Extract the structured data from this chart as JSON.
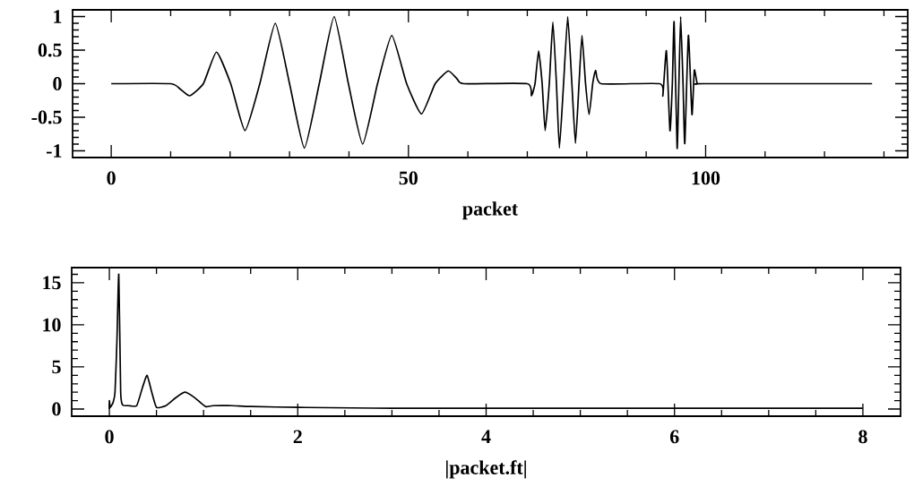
{
  "chart_data": [
    {
      "type": "line",
      "xlabel": "packet",
      "color": "#000000",
      "x": [
        0,
        10.0,
        11.6,
        13.2,
        15.5,
        17.7,
        20.1,
        22.5,
        25.0,
        27.6,
        30.0,
        32.5,
        35.0,
        37.5,
        39.9,
        42.3,
        44.8,
        47.2,
        49.7,
        52.2,
        54.5,
        56.7,
        58.2,
        59.3,
        70.0,
        70.7,
        71.3,
        71.9,
        72.5,
        73.0,
        73.7,
        74.3,
        74.9,
        75.4,
        76.1,
        76.8,
        77.5,
        78.1,
        78.7,
        79.2,
        79.8,
        80.4,
        81.0,
        81.5,
        82.4,
        92.3,
        92.8,
        93.4,
        94.0,
        94.4,
        94.7,
        95.2,
        95.5,
        95.8,
        96.2,
        96.5,
        97.1,
        97.7,
        98.1,
        98.6,
        99.6,
        128
      ],
      "values": [
        0,
        0,
        -0.08,
        -0.18,
        0,
        0.47,
        0,
        -0.7,
        0,
        0.9,
        0,
        -0.96,
        0,
        1.0,
        0,
        -0.9,
        0,
        0.72,
        0,
        -0.45,
        0,
        0.19,
        0.07,
        0,
        0,
        -0.18,
        0,
        0.49,
        0,
        -0.7,
        0,
        0.92,
        0,
        -0.96,
        0,
        1.0,
        0,
        -0.89,
        0,
        0.72,
        0,
        -0.46,
        0,
        0.2,
        0,
        0,
        -0.18,
        0.49,
        -0.7,
        0,
        0.92,
        -0.96,
        0,
        1.0,
        0,
        -0.89,
        0.72,
        -0.46,
        0.2,
        0,
        0,
        0
      ],
      "xlim": [
        -6.5,
        134
      ],
      "ylim": [
        -1.1,
        1.1
      ],
      "xticks": [
        0,
        {
          "value": 10,
          "label": null
        },
        {
          "value": 20,
          "label": null
        },
        {
          "value": 30,
          "label": null
        },
        {
          "value": 40,
          "label": null
        },
        50,
        {
          "value": 60,
          "label": null
        },
        {
          "value": 70,
          "label": null
        },
        {
          "value": 80,
          "label": null
        },
        {
          "value": 90,
          "label": null
        },
        100,
        {
          "value": 110,
          "label": null
        },
        {
          "value": 120,
          "label": null
        },
        {
          "value": 130,
          "label": null
        }
      ],
      "yticks": [
        -1,
        {
          "value": -0.9,
          "label": null
        },
        {
          "value": -0.8,
          "label": null
        },
        {
          "value": -0.7,
          "label": null
        },
        {
          "value": -0.6,
          "label": null
        },
        -0.5,
        {
          "value": -0.4,
          "label": null
        },
        {
          "value": -0.3,
          "label": null
        },
        {
          "value": -0.2,
          "label": null
        },
        {
          "value": -0.1,
          "label": null
        },
        0,
        {
          "value": 0.1,
          "label": null
        },
        {
          "value": 0.2,
          "label": null
        },
        {
          "value": 0.3,
          "label": null
        },
        {
          "value": 0.4,
          "label": null
        },
        0.5,
        {
          "value": 0.6,
          "label": null
        },
        {
          "value": 0.7,
          "label": null
        },
        {
          "value": 0.8,
          "label": null
        },
        {
          "value": 0.9,
          "label": null
        },
        1
      ]
    },
    {
      "type": "line",
      "xlabel": "|packet.ft|",
      "color": "#000000",
      "x": [
        0,
        0.0,
        0.01,
        0.04,
        0.06,
        0.08,
        0.1,
        0.12,
        0.14,
        0.2,
        0.29,
        0.35,
        0.4,
        0.45,
        0.5,
        0.6,
        0.7,
        0.8,
        0.9,
        1.02,
        1.1,
        1.3,
        1.5,
        2.0,
        3.0,
        8.0
      ],
      "values": [
        0,
        1.0,
        0.2,
        0.8,
        2.0,
        8.0,
        16.0,
        2.0,
        0.5,
        0.4,
        0.4,
        2.5,
        4.0,
        2.0,
        0.2,
        0.4,
        1.3,
        2.0,
        1.4,
        0.3,
        0.4,
        0.4,
        0.3,
        0.2,
        0.1,
        0.1
      ],
      "xlim": [
        -0.4,
        8.4
      ],
      "ylim": [
        -0.85,
        16.8
      ],
      "xticks": [
        0,
        {
          "value": 0.5,
          "label": null
        },
        {
          "value": 1,
          "label": null
        },
        {
          "value": 1.5,
          "label": null
        },
        2,
        {
          "value": 2.5,
          "label": null
        },
        {
          "value": 3,
          "label": null
        },
        {
          "value": 3.5,
          "label": null
        },
        4,
        {
          "value": 4.5,
          "label": null
        },
        {
          "value": 5,
          "label": null
        },
        {
          "value": 5.5,
          "label": null
        },
        6,
        {
          "value": 6.5,
          "label": null
        },
        {
          "value": 7,
          "label": null
        },
        {
          "value": 7.5,
          "label": null
        },
        8
      ],
      "yticks": [
        0,
        {
          "value": 1,
          "label": null
        },
        {
          "value": 2,
          "label": null
        },
        {
          "value": 3,
          "label": null
        },
        {
          "value": 4,
          "label": null
        },
        5,
        {
          "value": 6,
          "label": null
        },
        {
          "value": 7,
          "label": null
        },
        {
          "value": 8,
          "label": null
        },
        {
          "value": 9,
          "label": null
        },
        10,
        {
          "value": 11,
          "label": null
        },
        {
          "value": 12,
          "label": null
        },
        {
          "value": 13,
          "label": null
        },
        {
          "value": 14,
          "label": null
        },
        15,
        {
          "value": 16,
          "label": null
        }
      ]
    }
  ]
}
